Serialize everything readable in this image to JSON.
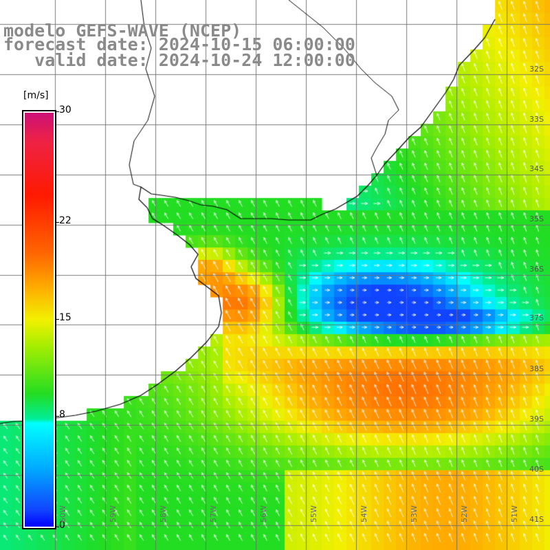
{
  "title": {
    "model": "modelo GEFS-WAVE (NCEP)",
    "forecast": "forecast date: 2024-10-15 06:00:00",
    "valid": "   valid date: 2024-10-24 12:00:00"
  },
  "colorbar": {
    "unit": "[m/s]",
    "ticks": [
      "30",
      "22",
      "15",
      "8",
      "0"
    ],
    "tick_values": [
      30,
      22,
      15,
      8,
      0
    ],
    "range": [
      0,
      30
    ]
  },
  "lat_labels": [
    "32S",
    "33S",
    "34S",
    "35S",
    "36S",
    "37S",
    "38S",
    "39S",
    "40S",
    "41S"
  ],
  "lon_labels": [
    "60W",
    "59W",
    "58W",
    "57W",
    "56W",
    "55W",
    "54W",
    "53W",
    "52W",
    "51W"
  ],
  "map_extent": {
    "lon": [
      -61,
      -50
    ],
    "lat": [
      -41.5,
      -30.5
    ]
  },
  "colors": {
    "land": "#ffffff",
    "coast": "#000000",
    "grid": "#808080",
    "arrow": "#ffffff"
  }
}
